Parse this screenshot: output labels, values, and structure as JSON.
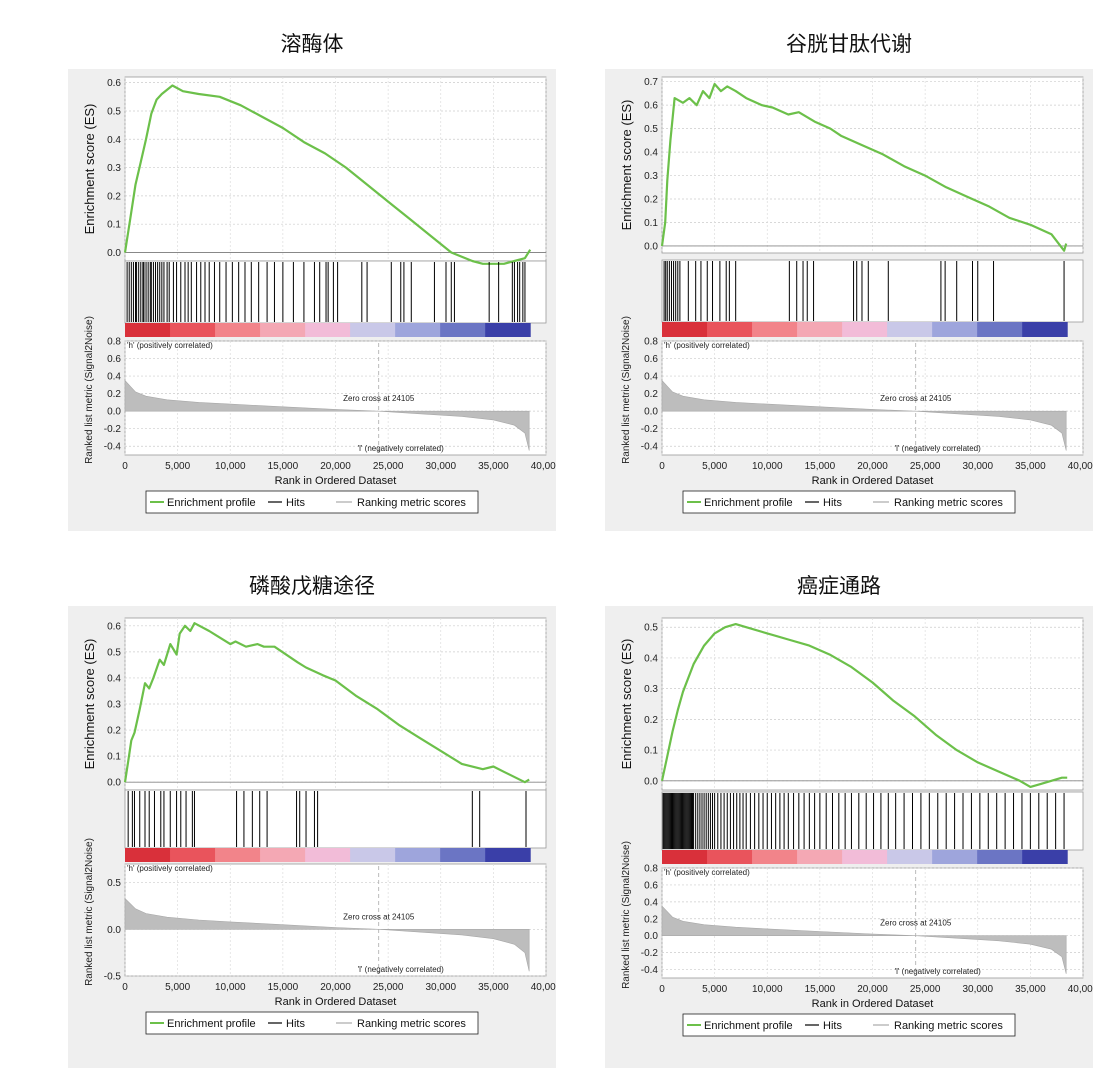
{
  "colors": {
    "es_line": "#6cc04a",
    "hits": "#000000",
    "ranking_fill": "#bdbdbd",
    "pos_label": "#d9303a",
    "neg_label": "#3b4fb0",
    "panel_bg": "#efefef",
    "gradient": [
      "#d9303a",
      "#e9545c",
      "#f2848a",
      "#f4a8b4",
      "#f2bcd8",
      "#c9c8e8",
      "#9ea5dc",
      "#6b75c4",
      "#3a3fa8"
    ]
  },
  "chart_data": [
    {
      "type": "line",
      "title": "溶酶体",
      "ylabel_es": "Enrichment score (ES)",
      "ylabel_rank": "Ranked list metric (Signal2Noise)",
      "xlabel": "Rank in Ordered Dataset",
      "es_yticks": [
        "0.0",
        "0.1",
        "0.2",
        "0.3",
        "0.4",
        "0.5",
        "0.6"
      ],
      "es_ylim": [
        -0.03,
        0.62
      ],
      "rank_yticks": [
        "0.8",
        "0.6",
        "0.4",
        "0.2",
        "0.0",
        "-0.2",
        "-0.4"
      ],
      "rank_ylim": [
        -0.5,
        0.8
      ],
      "xticks": [
        "0",
        "5,000",
        "10,000",
        "15,000",
        "20,000",
        "25,000",
        "30,000",
        "35,000",
        "40,000"
      ],
      "xlim": [
        0,
        40000
      ],
      "es_x": [
        0,
        500,
        1000,
        1500,
        2000,
        2500,
        3000,
        3500,
        4500,
        5500,
        7000,
        9000,
        11000,
        13000,
        15000,
        17000,
        19000,
        21000,
        23000,
        25000,
        27000,
        29000,
        31000,
        33000,
        34000,
        35000,
        36000,
        37000,
        38000,
        38500
      ],
      "es_y": [
        0.0,
        0.12,
        0.24,
        0.32,
        0.4,
        0.49,
        0.54,
        0.56,
        0.59,
        0.57,
        0.56,
        0.55,
        0.52,
        0.48,
        0.44,
        0.39,
        0.35,
        0.3,
        0.24,
        0.18,
        0.12,
        0.06,
        0.0,
        -0.03,
        -0.04,
        -0.04,
        -0.04,
        -0.03,
        -0.02,
        0.01
      ],
      "hits": [
        200,
        400,
        600,
        800,
        1000,
        1100,
        1300,
        1500,
        1700,
        1800,
        2000,
        2200,
        2400,
        2500,
        2700,
        2900,
        3100,
        3300,
        3500,
        3700,
        4000,
        4200,
        4600,
        4900,
        5300,
        5700,
        6000,
        6300,
        6800,
        7200,
        7600,
        8000,
        8500,
        9000,
        9600,
        10200,
        10800,
        11400,
        12000,
        12700,
        13500,
        14200,
        15000,
        16000,
        17000,
        18000,
        18500,
        19100,
        19300,
        19800,
        20200,
        22500,
        23000,
        25300,
        26200,
        26500,
        27200,
        29400,
        30500,
        31000,
        31300,
        34600,
        35500,
        36800,
        37000,
        37300,
        37500,
        37800,
        38000
      ],
      "rank_x": [
        0,
        1000,
        2000,
        4000,
        7000,
        10000,
        15000,
        20000,
        24105,
        28000,
        32000,
        35000,
        37000,
        38000,
        38400
      ],
      "rank_y": [
        0.35,
        0.22,
        0.17,
        0.13,
        0.1,
        0.08,
        0.05,
        0.02,
        0.0,
        -0.03,
        -0.06,
        -0.1,
        -0.16,
        -0.25,
        -0.45
      ],
      "zero_cross_label": "Zero cross at 24105",
      "zero_cross_x": 24105,
      "pos_label": "'h' (positively correlated)",
      "neg_label": "'l' (negatively correlated)",
      "legend": [
        "Enrichment profile",
        "Hits",
        "Ranking metric scores"
      ]
    },
    {
      "type": "line",
      "title": "谷胱甘肽代谢",
      "ylabel_es": "Enrichment score (ES)",
      "ylabel_rank": "Ranked list metric (Signal2Noise)",
      "xlabel": "Rank in Ordered Dataset",
      "es_yticks": [
        "0.0",
        "0.1",
        "0.2",
        "0.3",
        "0.4",
        "0.5",
        "0.6",
        "0.7"
      ],
      "es_ylim": [
        -0.03,
        0.72
      ],
      "rank_yticks": [
        "0.8",
        "0.6",
        "0.4",
        "0.2",
        "0.0",
        "-0.2",
        "-0.4"
      ],
      "rank_ylim": [
        -0.5,
        0.8
      ],
      "xticks": [
        "0",
        "5,000",
        "10,000",
        "15,000",
        "20,000",
        "25,000",
        "30,000",
        "35,000",
        "40,000"
      ],
      "xlim": [
        0,
        40000
      ],
      "es_x": [
        0,
        300,
        500,
        800,
        1200,
        2000,
        2600,
        3300,
        3900,
        4500,
        5000,
        5600,
        6200,
        7000,
        8000,
        9500,
        10500,
        12000,
        13000,
        14500,
        16000,
        17000,
        19000,
        21000,
        23000,
        25000,
        27000,
        29000,
        31000,
        33000,
        35000,
        37000,
        38200,
        38400
      ],
      "es_y": [
        0.0,
        0.1,
        0.28,
        0.45,
        0.63,
        0.61,
        0.63,
        0.6,
        0.66,
        0.63,
        0.69,
        0.66,
        0.68,
        0.66,
        0.63,
        0.6,
        0.59,
        0.56,
        0.57,
        0.53,
        0.5,
        0.47,
        0.43,
        0.39,
        0.34,
        0.3,
        0.25,
        0.21,
        0.17,
        0.12,
        0.09,
        0.05,
        -0.02,
        0.01
      ],
      "hits": [
        200,
        350,
        500,
        700,
        900,
        1100,
        1300,
        1500,
        1700,
        2500,
        3200,
        3700,
        4300,
        4800,
        5500,
        6100,
        6400,
        7000,
        12100,
        12800,
        13400,
        13800,
        14400,
        18200,
        18500,
        19000,
        19600,
        21500,
        26500,
        26900,
        28000,
        29500,
        30000,
        31500,
        38200
      ],
      "rank_x": [
        0,
        1000,
        2000,
        4000,
        7000,
        10000,
        15000,
        20000,
        24105,
        28000,
        32000,
        35000,
        37000,
        38000,
        38400
      ],
      "rank_y": [
        0.35,
        0.22,
        0.17,
        0.13,
        0.1,
        0.08,
        0.05,
        0.02,
        0.0,
        -0.03,
        -0.06,
        -0.1,
        -0.16,
        -0.25,
        -0.45
      ],
      "zero_cross_label": "Zero cross at 24105",
      "zero_cross_x": 24105,
      "pos_label": "'h' (positively correlated)",
      "neg_label": "'l' (negatively correlated)",
      "legend": [
        "Enrichment profile",
        "Hits",
        "Ranking metric scores"
      ]
    },
    {
      "type": "line",
      "title": "磷酸戊糖途径",
      "ylabel_es": "Enrichment score (ES)",
      "ylabel_rank": "Ranked list metric (Signal2Noise)",
      "xlabel": "Rank in Ordered Dataset",
      "es_yticks": [
        "0.0",
        "0.1",
        "0.2",
        "0.3",
        "0.4",
        "0.5",
        "0.6"
      ],
      "es_ylim": [
        -0.03,
        0.63
      ],
      "rank_yticks": [
        "0.5",
        "0.0",
        "-0.5"
      ],
      "rank_ylim": [
        -0.5,
        0.7
      ],
      "xticks": [
        "0",
        "5,000",
        "10,000",
        "15,000",
        "20,000",
        "25,000",
        "30,000",
        "35,000",
        "40,000"
      ],
      "xlim": [
        0,
        40000
      ],
      "es_x": [
        0,
        300,
        600,
        900,
        1400,
        1900,
        2300,
        2700,
        3300,
        3700,
        4300,
        4900,
        5200,
        5700,
        6200,
        6600,
        8000,
        10000,
        10500,
        11500,
        12600,
        13200,
        14200,
        16400,
        17200,
        18800,
        20000,
        22000,
        24000,
        26000,
        28000,
        30000,
        32000,
        34000,
        35000,
        36000,
        38000,
        38400
      ],
      "es_y": [
        0.0,
        0.08,
        0.16,
        0.19,
        0.28,
        0.38,
        0.36,
        0.4,
        0.47,
        0.45,
        0.53,
        0.49,
        0.57,
        0.6,
        0.58,
        0.61,
        0.58,
        0.53,
        0.54,
        0.52,
        0.53,
        0.52,
        0.52,
        0.46,
        0.44,
        0.41,
        0.39,
        0.33,
        0.28,
        0.22,
        0.17,
        0.12,
        0.07,
        0.05,
        0.06,
        0.04,
        0.0,
        0.01
      ],
      "hits": [
        300,
        700,
        900,
        1400,
        1900,
        2300,
        2800,
        3400,
        3700,
        4300,
        4900,
        5300,
        5800,
        6400,
        6600,
        10600,
        11300,
        12100,
        12800,
        13500,
        16300,
        16600,
        17200,
        18000,
        18300,
        33000,
        33700,
        38100
      ],
      "rank_x": [
        0,
        1000,
        2000,
        4000,
        7000,
        10000,
        15000,
        20000,
        24105,
        28000,
        32000,
        35000,
        37000,
        38000,
        38400
      ],
      "rank_y": [
        0.33,
        0.22,
        0.17,
        0.13,
        0.1,
        0.08,
        0.05,
        0.02,
        0.0,
        -0.03,
        -0.06,
        -0.1,
        -0.16,
        -0.25,
        -0.45
      ],
      "zero_cross_label": "Zero cross at 24105",
      "zero_cross_x": 24105,
      "pos_label": "'h' (positively correlated)",
      "neg_label": "'l' (negatively correlated)",
      "legend": [
        "Enrichment profile",
        "Hits",
        "Ranking metric scores"
      ]
    },
    {
      "type": "line",
      "title": "癌症通路",
      "ylabel_es": "Enrichment score (ES)",
      "ylabel_rank": "Ranked list metric (Signal2Noise)",
      "xlabel": "Rank in Ordered Dataset",
      "es_yticks": [
        "0.0",
        "0.1",
        "0.2",
        "0.3",
        "0.4",
        "0.5"
      ],
      "es_ylim": [
        -0.03,
        0.53
      ],
      "rank_yticks": [
        "0.8",
        "0.6",
        "0.4",
        "0.2",
        "0.0",
        "-0.2",
        "-0.4"
      ],
      "rank_ylim": [
        -0.5,
        0.8
      ],
      "xticks": [
        "0",
        "5,000",
        "10,000",
        "15,000",
        "20,000",
        "25,000",
        "30,000",
        "35,000",
        "40,000"
      ],
      "xlim": [
        0,
        40000
      ],
      "es_x": [
        0,
        500,
        1000,
        1500,
        2000,
        3000,
        4000,
        5000,
        6000,
        7000,
        8000,
        10000,
        12000,
        14000,
        16000,
        18000,
        20000,
        22000,
        24000,
        26000,
        28000,
        30000,
        32000,
        34000,
        35000,
        36000,
        37000,
        38000,
        38500
      ],
      "es_y": [
        0.0,
        0.08,
        0.16,
        0.23,
        0.29,
        0.38,
        0.44,
        0.48,
        0.5,
        0.51,
        0.5,
        0.48,
        0.46,
        0.44,
        0.41,
        0.37,
        0.32,
        0.26,
        0.21,
        0.15,
        0.1,
        0.06,
        0.03,
        0.0,
        -0.02,
        -0.01,
        0.0,
        0.01,
        0.01
      ],
      "hits": [
        100,
        200,
        300,
        400,
        500,
        600,
        700,
        800,
        900,
        1000,
        1100,
        1200,
        1300,
        1400,
        1500,
        1600,
        1700,
        1800,
        1900,
        2000,
        2100,
        2200,
        2300,
        2400,
        2500,
        2600,
        2700,
        2800,
        2900,
        3000,
        3200,
        3400,
        3600,
        3800,
        4000,
        4200,
        4400,
        4600,
        4800,
        5000,
        5300,
        5600,
        5900,
        6200,
        6500,
        6800,
        7100,
        7400,
        7700,
        8000,
        8400,
        8800,
        9200,
        9600,
        10000,
        10400,
        10800,
        11200,
        11600,
        12000,
        12500,
        13000,
        13500,
        14000,
        14500,
        15000,
        15600,
        16200,
        16800,
        17400,
        18000,
        18700,
        19400,
        20100,
        20800,
        21500,
        22200,
        23000,
        23800,
        24600,
        25400,
        26200,
        27000,
        27800,
        28600,
        29400,
        30200,
        31000,
        31800,
        32600,
        33400,
        34200,
        35000,
        35800,
        36600,
        37400,
        38200
      ],
      "rank_x": [
        0,
        1000,
        2000,
        4000,
        7000,
        10000,
        15000,
        20000,
        24105,
        28000,
        32000,
        35000,
        37000,
        38000,
        38400
      ],
      "rank_y": [
        0.35,
        0.22,
        0.17,
        0.13,
        0.1,
        0.08,
        0.05,
        0.02,
        0.0,
        -0.03,
        -0.06,
        -0.1,
        -0.16,
        -0.25,
        -0.45
      ],
      "zero_cross_label": "Zero cross at 24105",
      "zero_cross_x": 24105,
      "pos_label": "'h' (positively correlated)",
      "neg_label": "'l' (negatively correlated)",
      "legend": [
        "Enrichment profile",
        "Hits",
        "Ranking metric scores"
      ]
    }
  ]
}
